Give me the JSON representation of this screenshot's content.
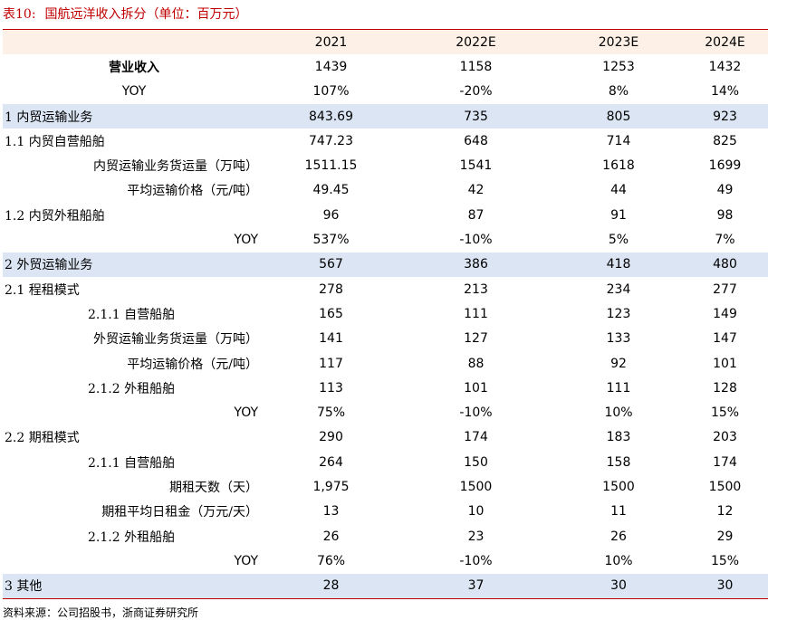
{
  "title": {
    "label": "表10:",
    "text": "国航远洋收入拆分（单位：百万元）"
  },
  "table": {
    "headers": [
      "",
      "2021",
      "2022E",
      "2023E",
      "2024E"
    ],
    "rows": [
      {
        "label": "营业收入",
        "values": [
          "1439",
          "1158",
          "1253",
          "1432"
        ]
      },
      {
        "label": "YOY",
        "values": [
          "107%",
          "-20%",
          "8%",
          "14%"
        ]
      },
      {
        "label": "1 内贸运输业务",
        "values": [
          "843.69",
          "735",
          "805",
          "923"
        ]
      },
      {
        "label": "1.1 内贸自营船舶",
        "values": [
          "747.23",
          "648",
          "714",
          "825"
        ]
      },
      {
        "label": "内贸运输业务货运量（万吨）",
        "values": [
          "1511.15",
          "1541",
          "1618",
          "1699"
        ]
      },
      {
        "label": "平均运输价格（元/吨）",
        "values": [
          "49.45",
          "42",
          "44",
          "49"
        ]
      },
      {
        "label": "1.2 内贸外租船舶",
        "values": [
          "96",
          "87",
          "91",
          "98"
        ]
      },
      {
        "label": "YOY",
        "values": [
          "537%",
          "-10%",
          "5%",
          "7%"
        ]
      },
      {
        "label": "2 外贸运输业务",
        "values": [
          "567",
          "386",
          "418",
          "480"
        ]
      },
      {
        "label": "2.1 程租模式",
        "values": [
          "278",
          "213",
          "234",
          "277"
        ]
      },
      {
        "label": "2.1.1 自营船舶",
        "values": [
          "165",
          "111",
          "123",
          "149"
        ]
      },
      {
        "label": "外贸运输业务货运量（万吨）",
        "values": [
          "141",
          "127",
          "133",
          "147"
        ]
      },
      {
        "label": "平均运输价格（元/吨）",
        "values": [
          "117",
          "88",
          "92",
          "101"
        ]
      },
      {
        "label": "2.1.2 外租船舶",
        "values": [
          "113",
          "101",
          "111",
          "128"
        ]
      },
      {
        "label": "YOY",
        "values": [
          "75%",
          "-10%",
          "10%",
          "15%"
        ]
      },
      {
        "label": "2.2 期租模式",
        "values": [
          "290",
          "174",
          "183",
          "203"
        ]
      },
      {
        "label": "2.1.1 自营船舶",
        "values": [
          "264",
          "150",
          "158",
          "174"
        ]
      },
      {
        "label": "期租天数（天）",
        "values": [
          "1,975",
          "1500",
          "1500",
          "1500"
        ]
      },
      {
        "label": "期租平均日租金（万元/天）",
        "values": [
          "13",
          "10",
          "11",
          "12"
        ]
      },
      {
        "label": "2.1.2 外租船舶",
        "values": [
          "26",
          "23",
          "26",
          "29"
        ]
      },
      {
        "label": "YOY",
        "values": [
          "76%",
          "-10%",
          "10%",
          "15%"
        ]
      },
      {
        "label": "3 其他",
        "values": [
          "28",
          "37",
          "30",
          "30"
        ]
      }
    ]
  },
  "source": "资料来源：公司招股书，浙商证券研究所",
  "colors": {
    "accent": "#c00000",
    "header_bg": "#fdf0e6",
    "highlight_bg": "#dbe5f3"
  }
}
